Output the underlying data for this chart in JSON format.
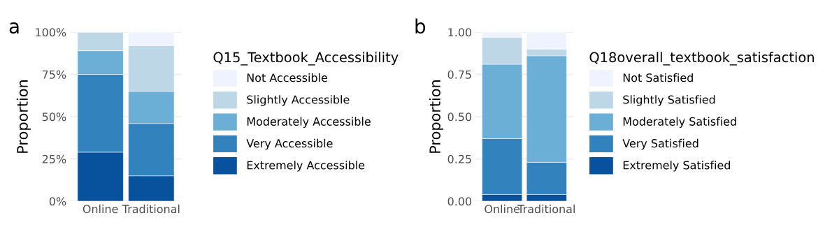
{
  "chart_data": [
    {
      "type": "bar",
      "stacked": true,
      "categories": [
        "Online",
        "Traditional"
      ],
      "ylabel": "Proportion",
      "legend_title": "Q15_Textbook_Accessibility",
      "legend": "right",
      "grid": true,
      "annotations": [
        "a"
      ],
      "ylim": [
        0,
        1
      ],
      "yticks": [
        {
          "value": 0,
          "label": "0%"
        },
        {
          "value": 0.25,
          "label": "25%"
        },
        {
          "value": 0.5,
          "label": "50%"
        },
        {
          "value": 0.75,
          "label": "75%"
        },
        {
          "value": 1,
          "label": "100%"
        }
      ],
      "series": [
        {
          "name": "Extremely Accessible",
          "color": "#08519c",
          "values": [
            0.29,
            0.15
          ]
        },
        {
          "name": "Very Accessible",
          "color": "#3182bd",
          "values": [
            0.46,
            0.31
          ]
        },
        {
          "name": "Moderately Accessible",
          "color": "#6baed6",
          "values": [
            0.14,
            0.19
          ]
        },
        {
          "name": "Slightly Accessible",
          "color": "#bdd7e7",
          "values": [
            0.11,
            0.27
          ]
        },
        {
          "name": "Not Accessible",
          "color": "#eff3ff",
          "values": [
            0,
            0.08
          ]
        }
      ]
    },
    {
      "type": "bar",
      "stacked": true,
      "categories": [
        "Online",
        "Traditional"
      ],
      "ylabel": "Proportion",
      "legend_title": "Q18overall_textbook_satisfaction",
      "legend": "right",
      "grid": true,
      "annotations": [
        "b"
      ],
      "ylim": [
        0,
        1
      ],
      "yticks": [
        {
          "value": 0,
          "label": "0.00"
        },
        {
          "value": 0.25,
          "label": "0.25"
        },
        {
          "value": 0.5,
          "label": "0.50"
        },
        {
          "value": 0.75,
          "label": "0.75"
        },
        {
          "value": 1,
          "label": "1.00"
        }
      ],
      "series": [
        {
          "name": "Extremely Satisfied",
          "color": "#08519c",
          "values": [
            0.04,
            0.04
          ]
        },
        {
          "name": "Very Satisfied",
          "color": "#3182bd",
          "values": [
            0.33,
            0.19
          ]
        },
        {
          "name": "Moderately Satisfied",
          "color": "#6baed6",
          "values": [
            0.44,
            0.63
          ]
        },
        {
          "name": "Slightly Satisfied",
          "color": "#bdd7e7",
          "values": [
            0.16,
            0.04
          ]
        },
        {
          "name": "Not Satisfied",
          "color": "#eff3ff",
          "values": [
            0.03,
            0.1
          ]
        }
      ]
    }
  ]
}
